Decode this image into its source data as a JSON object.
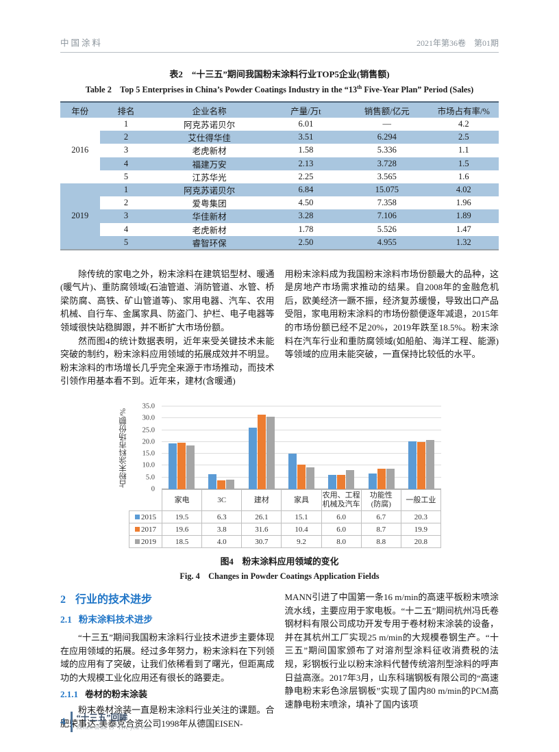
{
  "colors": {
    "table_fill": "#a9c6df",
    "accent_blue": "#2176c7",
    "series_2015": "#5b9bd5",
    "series_2017": "#ed7d31",
    "series_2019": "#a5a5a5"
  },
  "header": {
    "journal": "中国涂料",
    "issue": "2021年第36卷　第01期"
  },
  "table2": {
    "title_zh": "表2　“十三五”期间我国粉末涂料行业TOP5企业(销售额)",
    "title_en_prefix": "Table 2　Top 5 Enterprises in China’s Powder Coatings Industry in the “13",
    "title_en_sup": "th",
    "title_en_suffix": " Five-Year Plan” Period (Sales)",
    "columns": [
      "年份",
      "排名",
      "企业名称",
      "产量/万t",
      "销售额/亿元",
      "市场占有率/%"
    ],
    "col_widths": [
      "9%",
      "12%",
      "26%",
      "18%",
      "19%",
      "16%"
    ],
    "groups": [
      {
        "year": "2016",
        "rows": [
          [
            "1",
            "阿克苏诺贝尔",
            "6.01",
            "—",
            "4.2"
          ],
          [
            "2",
            "艾仕得华佳",
            "3.51",
            "6.294",
            "2.5"
          ],
          [
            "3",
            "老虎新材",
            "1.58",
            "5.336",
            "1.1"
          ],
          [
            "4",
            "福建万安",
            "2.13",
            "3.728",
            "1.5"
          ],
          [
            "5",
            "江苏华光",
            "2.25",
            "3.565",
            "1.6"
          ]
        ]
      },
      {
        "year": "2019",
        "rows": [
          [
            "1",
            "阿克苏诺贝尔",
            "6.84",
            "15.075",
            "4.02"
          ],
          [
            "2",
            "爱粤集团",
            "4.50",
            "7.358",
            "1.96"
          ],
          [
            "3",
            "华佳新材",
            "3.28",
            "7.106",
            "1.89"
          ],
          [
            "4",
            "老虎新材",
            "1.78",
            "5.526",
            "1.47"
          ],
          [
            "5",
            "睿智环保",
            "2.50",
            "4.955",
            "1.32"
          ]
        ]
      }
    ]
  },
  "upper_text": {
    "left_p1": "除传统的家电之外，粉末涂料在建筑铝型材、暖通(暖气片)、重防腐领域(石油管道、消防管道、水管、桥梁防腐、高铁、矿山管道等)、家用电器、汽车、农用机械、自行车、金属家具、防盗门、护栏、电子电器等领域很快站稳脚跟，并不断扩大市场份额。",
    "left_p2": "然而图4的统计数据表明，近年来受关键技术未能突破的制约，粉末涂料应用领域的拓展成效并不明显。粉末涂料的市场增长几乎完全来源于市场推动，而技术引领作用基本看不到。近年来，建材(含暖通)",
    "right_p": "用粉末涂料成为我国粉末涂料市场份额最大的品种，这是房地产市场需求推动的结果。自2008年的金融危机后，欧美经济一蹶不振，经济复苏缓慢，导致出口产品受阻，家电用粉末涂料的市场份额便逐年减退，2015年的市场份额已经不足20%，2019年跌至18.5%。粉末涂料在汽车行业和重防腐领域(如船舶、海洋工程、能源)等领域的应用未能突破，一直保持比较低的水平。"
  },
  "chart_data": {
    "type": "bar",
    "title": "",
    "xlabel": "",
    "ylabel": "占粉末涂料市场份额/%",
    "ylim": [
      0,
      35
    ],
    "ytick_step": 5,
    "ytick_labels": [
      "0",
      "5.0",
      "10.0",
      "15.0",
      "20.0",
      "25.0",
      "30.0",
      "35.0"
    ],
    "grid": true,
    "legend_position": "data-table-left",
    "categories": [
      "家电",
      "3C",
      "建材",
      "家具",
      "农用、工程\n机械及汽车",
      "功能性\n(防腐)",
      "一般工业"
    ],
    "series": [
      {
        "name": "2015",
        "color": "#5b9bd5",
        "values": [
          19.5,
          6.3,
          26.1,
          15.1,
          6.0,
          6.7,
          20.3
        ]
      },
      {
        "name": "2017",
        "color": "#ed7d31",
        "values": [
          19.6,
          3.8,
          31.6,
          10.4,
          6.0,
          8.7,
          19.9
        ]
      },
      {
        "name": "2019",
        "color": "#a5a5a5",
        "values": [
          18.5,
          4.0,
          30.7,
          9.2,
          8.0,
          8.8,
          20.8
        ]
      }
    ]
  },
  "figure_caption": {
    "zh": "图4　粉末涂料应用领域的变化",
    "en": "Fig. 4　Changes in Powder Coatings Application Fields"
  },
  "section2": {
    "h2_num": "2",
    "h2_title": "行业的技术进步",
    "h3_num": "2.1",
    "h3_title": "粉末涂料技术进步",
    "p1": "“十三五”期间我国粉末涂料行业技术进步主要体现在应用领域的拓展。经过多年努力，粉末涂料在下列领域的应用有了突破，让我们依稀看到了曙光，但距离成功的大规模工业化应用还有很长的路要走。",
    "h4_num": "2.1.1",
    "h4_title": "卷材的粉末涂装",
    "p2": "粉末卷材涂装一直是粉末涂料行业关注的课题。合肥荣事达-美泰克合资公司1998年从德国EISEN-",
    "right_p": "MANN引进了中国第一条16 m/min的高速平板粉末喷涂流水线，主要应用于家电板。“十二五”期间杭州冯氏卷钢材料有限公司成功开发专用于卷材粉末涂装的设备，并在其杭州工厂实现25 m/min的大规模卷钢生产。“十三五”期间国家颁布了对溶剂型涂料征收消费税的法规，彩钢板行业以粉末涂料代替传统溶剂型涂料的呼声日益高涨。2017年3月，山东科瑞钢板有限公司的“高速静电粉末彩色涂层钢板”实现了国内80 m/min的PCM高速静电粉末喷涂，填补了国内该项"
  },
  "footer": {
    "page_number": "4",
    "title": "“十三五”回眸",
    "subtitle_prefix": "Review of the 13",
    "subtitle_sup": "th",
    "subtitle_suffix": " Five-year Plan"
  }
}
